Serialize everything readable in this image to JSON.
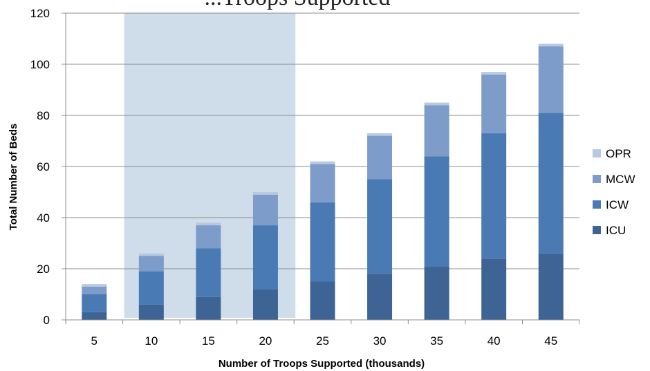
{
  "chart_data": {
    "type": "bar",
    "stacked": true,
    "title": "...Troops Supported",
    "xlabel": "Number of Troops Supported (thousands)",
    "ylabel": "Total Number of Beds",
    "categories": [
      "5",
      "10",
      "15",
      "20",
      "25",
      "30",
      "35",
      "40",
      "45"
    ],
    "ylim": [
      0,
      120
    ],
    "yticks": [
      "0",
      "20",
      "40",
      "60",
      "80",
      "100",
      "120"
    ],
    "grid": true,
    "legend_position": "right",
    "highlight_categories": [
      "10",
      "15",
      "20"
    ],
    "highlight_color": "#cfdcea",
    "series": [
      {
        "name": "ICU",
        "color": "#3d6495",
        "values": [
          3,
          6,
          9,
          12,
          15,
          18,
          21,
          24,
          26
        ]
      },
      {
        "name": "ICW",
        "color": "#4a7ab3",
        "values": [
          7,
          13,
          19,
          25,
          31,
          37,
          43,
          49,
          55
        ]
      },
      {
        "name": "MCW",
        "color": "#7d9cc9",
        "values": [
          3,
          6,
          9,
          12,
          15,
          17,
          20,
          23,
          26
        ]
      },
      {
        "name": "OPR",
        "color": "#b7c9e2",
        "values": [
          1,
          1,
          1,
          1,
          1,
          1,
          1,
          1,
          1
        ]
      }
    ]
  }
}
